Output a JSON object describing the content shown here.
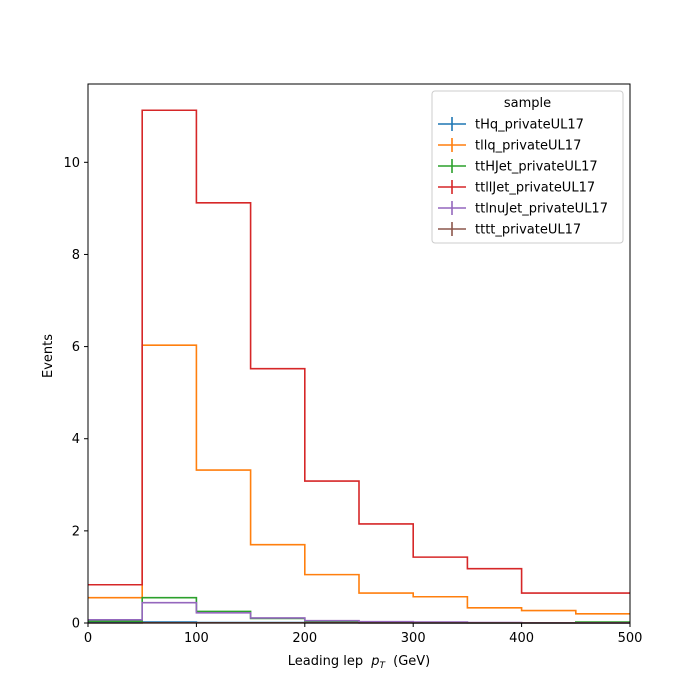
{
  "chart_data": {
    "type": "line",
    "drawstyle": "steps",
    "xlabel": "Leading lep",
    "xlabel_symbol": "p",
    "xlabel_subscript": "T",
    "xlabel_unit": "(GeV)",
    "ylabel": "Events",
    "xlim": [
      0,
      500
    ],
    "ylim": [
      0,
      11.7
    ],
    "xticks": [
      0,
      100,
      200,
      300,
      400,
      500
    ],
    "yticks": [
      0,
      2,
      4,
      6,
      8,
      10
    ],
    "grid": false,
    "legend": {
      "title": "sample",
      "placement": "top-right"
    },
    "bin_edges": [
      0,
      50,
      100,
      150,
      200,
      250,
      300,
      350,
      400,
      450,
      500
    ],
    "series": [
      {
        "name": "tHq_privateUL17",
        "color": "#1f77b4",
        "values": [
          0.02,
          0.02,
          0.01,
          0.01,
          0.005,
          0.003,
          0.002,
          0.001,
          0.001,
          0.0
        ]
      },
      {
        "name": "tllq_privateUL17",
        "color": "#ff7f0e",
        "values": [
          0.55,
          6.03,
          3.32,
          1.7,
          1.05,
          0.65,
          0.57,
          0.33,
          0.27,
          0.2
        ]
      },
      {
        "name": "ttHJet_privateUL17",
        "color": "#2ca02c",
        "values": [
          0.04,
          0.55,
          0.25,
          0.1,
          0.04,
          0.02,
          0.01,
          0.005,
          0.003,
          0.02
        ]
      },
      {
        "name": "ttllJet_privateUL17",
        "color": "#d62728",
        "values": [
          0.83,
          11.13,
          9.12,
          5.52,
          3.08,
          2.15,
          1.43,
          1.18,
          0.65,
          0.65
        ]
      },
      {
        "name": "ttlnuJet_privateUL17",
        "color": "#9467bd",
        "values": [
          0.07,
          0.44,
          0.22,
          0.11,
          0.05,
          0.03,
          0.02,
          0.01,
          0.005,
          0.003
        ]
      },
      {
        "name": "tttt_privateUL17",
        "color": "#8c564b",
        "values": [
          0.0,
          0.005,
          0.005,
          0.004,
          0.003,
          0.002,
          0.002,
          0.001,
          0.001,
          0.001
        ]
      }
    ]
  }
}
